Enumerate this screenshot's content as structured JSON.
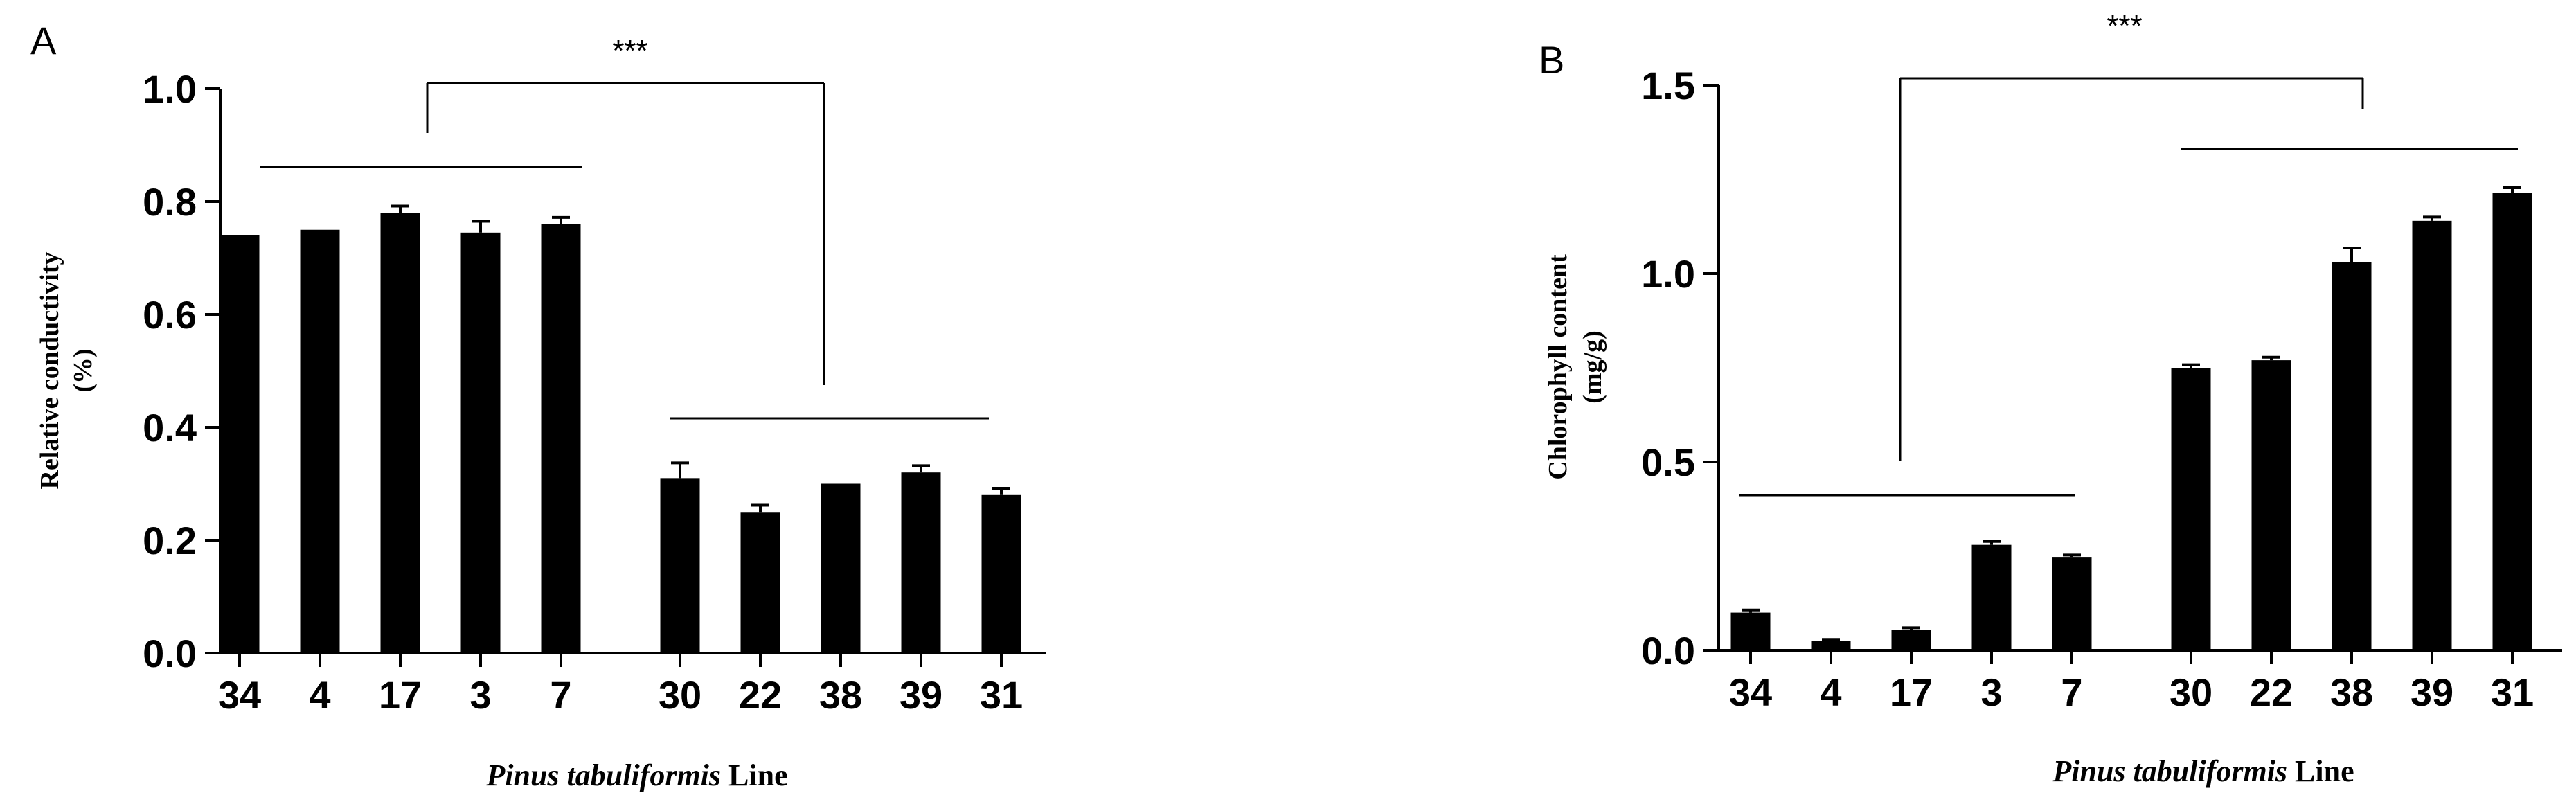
{
  "chart_data": [
    {
      "panel": "A",
      "type": "bar",
      "ylabel": [
        "Relative conductivity",
        "(%)"
      ],
      "xlabel": {
        "italic": "Pinus tabuliformis",
        "rest": " Line"
      },
      "ylim": [
        0,
        1.0
      ],
      "yticks": [
        "0.0",
        "0.2",
        "0.4",
        "0.6",
        "0.8",
        "1.0"
      ],
      "groups": [
        {
          "categories": [
            "34",
            "4",
            "17",
            "3",
            "7"
          ],
          "values": [
            0.74,
            0.75,
            0.78,
            0.745,
            0.76
          ],
          "errors": [
            0,
            0,
            0.012,
            0.02,
            0.012
          ]
        },
        {
          "categories": [
            "30",
            "22",
            "38",
            "39",
            "31"
          ],
          "values": [
            0.31,
            0.25,
            0.3,
            0.32,
            0.28
          ],
          "errors": [
            0.027,
            0.012,
            0,
            0.012,
            0.012
          ]
        }
      ],
      "significance": "***",
      "grid": false,
      "legend": "none"
    },
    {
      "panel": "B",
      "type": "bar",
      "ylabel": [
        "Chlorophyll content",
        "(mg/g)"
      ],
      "xlabel": {
        "italic": "Pinus tabuliformis",
        "rest": " Line"
      },
      "ylim": [
        0,
        1.5
      ],
      "yticks": [
        "0.0",
        "0.5",
        "1.0",
        "1.5"
      ],
      "groups": [
        {
          "categories": [
            "34",
            "4",
            "17",
            "3",
            "7"
          ],
          "values": [
            0.1,
            0.025,
            0.055,
            0.28,
            0.248
          ],
          "errors": [
            0.007,
            0.004,
            0.005,
            0.009,
            0.005
          ]
        },
        {
          "categories": [
            "30",
            "22",
            "38",
            "39",
            "31"
          ],
          "values": [
            0.75,
            0.77,
            1.03,
            1.14,
            1.215
          ],
          "errors": [
            0.008,
            0.008,
            0.038,
            0.01,
            0.013
          ]
        }
      ],
      "significance": "***",
      "grid": false,
      "legend": "none"
    }
  ]
}
